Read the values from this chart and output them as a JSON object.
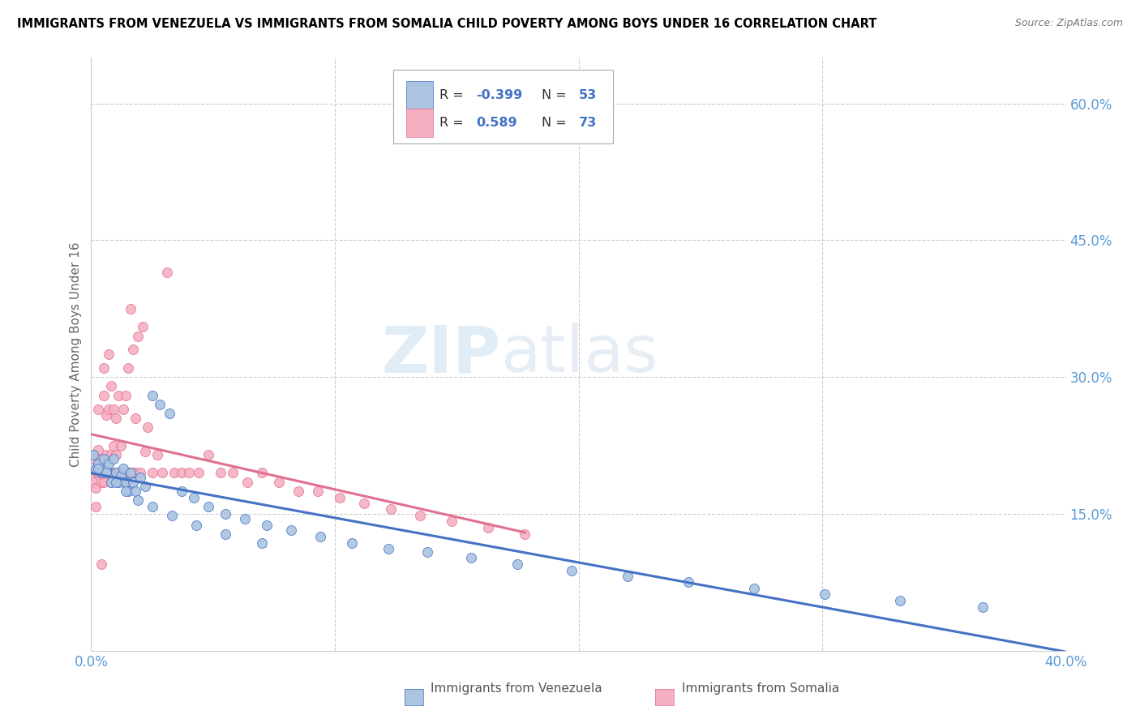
{
  "title": "IMMIGRANTS FROM VENEZUELA VS IMMIGRANTS FROM SOMALIA CHILD POVERTY AMONG BOYS UNDER 16 CORRELATION CHART",
  "source": "Source: ZipAtlas.com",
  "ylabel": "Child Poverty Among Boys Under 16",
  "legend_label1": "Immigrants from Venezuela",
  "legend_label2": "Immigrants from Somalia",
  "color_venezuela": "#aac4e2",
  "color_somalia": "#f5afc0",
  "color_venezuela_line": "#4472c4",
  "color_somalia_line": "#e07090",
  "color_axis_label": "#5b9bd5",
  "R_venezuela": "-0.399",
  "N_venezuela": "53",
  "R_somalia": "0.589",
  "N_somalia": "73",
  "venezuela_x": [
    0.001,
    0.002,
    0.003,
    0.004,
    0.005,
    0.006,
    0.007,
    0.008,
    0.009,
    0.01,
    0.011,
    0.012,
    0.013,
    0.014,
    0.015,
    0.016,
    0.017,
    0.018,
    0.02,
    0.022,
    0.025,
    0.028,
    0.032,
    0.037,
    0.042,
    0.048,
    0.055,
    0.063,
    0.072,
    0.082,
    0.094,
    0.107,
    0.122,
    0.138,
    0.156,
    0.175,
    0.197,
    0.22,
    0.245,
    0.272,
    0.301,
    0.332,
    0.366,
    0.003,
    0.006,
    0.01,
    0.014,
    0.019,
    0.025,
    0.033,
    0.043,
    0.055,
    0.07
  ],
  "venezuela_y": [
    0.215,
    0.2,
    0.205,
    0.195,
    0.21,
    0.198,
    0.205,
    0.185,
    0.21,
    0.195,
    0.185,
    0.192,
    0.2,
    0.185,
    0.175,
    0.195,
    0.185,
    0.175,
    0.19,
    0.18,
    0.28,
    0.27,
    0.26,
    0.175,
    0.168,
    0.158,
    0.15,
    0.145,
    0.138,
    0.132,
    0.125,
    0.118,
    0.112,
    0.108,
    0.102,
    0.095,
    0.088,
    0.082,
    0.075,
    0.068,
    0.062,
    0.055,
    0.048,
    0.2,
    0.195,
    0.185,
    0.175,
    0.165,
    0.158,
    0.148,
    0.138,
    0.128,
    0.118
  ],
  "somalia_x": [
    0.001,
    0.001,
    0.002,
    0.002,
    0.002,
    0.003,
    0.003,
    0.003,
    0.004,
    0.004,
    0.004,
    0.005,
    0.005,
    0.005,
    0.006,
    0.006,
    0.006,
    0.007,
    0.007,
    0.007,
    0.008,
    0.008,
    0.008,
    0.009,
    0.009,
    0.009,
    0.01,
    0.01,
    0.01,
    0.011,
    0.011,
    0.012,
    0.012,
    0.013,
    0.013,
    0.014,
    0.014,
    0.015,
    0.015,
    0.016,
    0.016,
    0.017,
    0.017,
    0.018,
    0.018,
    0.019,
    0.02,
    0.021,
    0.022,
    0.023,
    0.025,
    0.027,
    0.029,
    0.031,
    0.034,
    0.037,
    0.04,
    0.044,
    0.048,
    0.053,
    0.058,
    0.064,
    0.07,
    0.077,
    0.085,
    0.093,
    0.102,
    0.112,
    0.123,
    0.135,
    0.148,
    0.163,
    0.178
  ],
  "somalia_y": [
    0.185,
    0.21,
    0.195,
    0.158,
    0.178,
    0.195,
    0.22,
    0.265,
    0.185,
    0.21,
    0.095,
    0.185,
    0.28,
    0.31,
    0.195,
    0.215,
    0.258,
    0.195,
    0.265,
    0.325,
    0.185,
    0.215,
    0.29,
    0.195,
    0.225,
    0.265,
    0.195,
    0.215,
    0.255,
    0.195,
    0.28,
    0.195,
    0.225,
    0.185,
    0.265,
    0.195,
    0.28,
    0.195,
    0.31,
    0.195,
    0.375,
    0.195,
    0.33,
    0.195,
    0.255,
    0.345,
    0.195,
    0.355,
    0.218,
    0.245,
    0.195,
    0.215,
    0.195,
    0.415,
    0.195,
    0.195,
    0.195,
    0.195,
    0.215,
    0.195,
    0.195,
    0.185,
    0.195,
    0.185,
    0.175,
    0.175,
    0.168,
    0.162,
    0.155,
    0.148,
    0.142,
    0.135,
    0.128
  ],
  "xlim": [
    0.0,
    0.4
  ],
  "ylim": [
    0.0,
    0.65
  ],
  "yticks": [
    0.15,
    0.3,
    0.45,
    0.6
  ],
  "ytick_labels": [
    "15.0%",
    "30.0%",
    "45.0%",
    "60.0%"
  ],
  "xticks": [
    0.0,
    0.1,
    0.2,
    0.3,
    0.4
  ],
  "xtick_labels": [
    "0.0%",
    "",
    "",
    "",
    "40.0%"
  ]
}
